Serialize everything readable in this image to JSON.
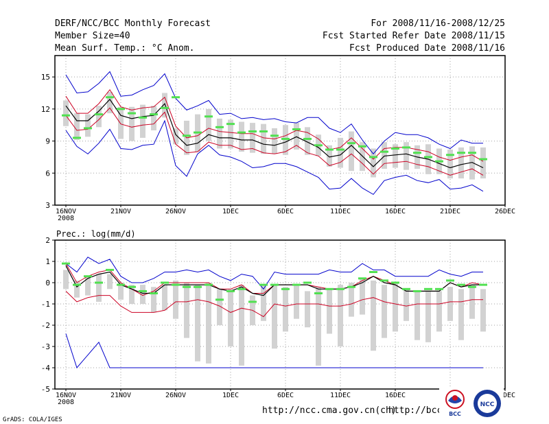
{
  "header": {
    "title": "DERF/NCC/BCC Monthly Forecast",
    "member_size": "Member Size=40",
    "variable": "Mean Surf. Temp.: °C Anom.",
    "period": "For 2008/11/16-2008/12/25",
    "started": "Fcst Started Refer Date 2008/11/15",
    "produced": "Fcst Produced Date 2008/11/16"
  },
  "footer": {
    "grads": "GrADS: COLA/IGES",
    "url1": "http://ncc.cma.gov.cn(ch)",
    "url2": "http://bcc.c"
  },
  "logos": {
    "bcc": "BCC",
    "ncc": "NCC"
  },
  "colors": {
    "grid": "#a0a0a0",
    "box": "#d2d2d2",
    "green": "#50e050",
    "blue": "#0000cc",
    "red": "#cc0022",
    "black": "#000000"
  },
  "chart_data": [
    {
      "type": "line",
      "title": "Mean Surf. Temp.: °C Anom.",
      "xlabel": "",
      "ylabel": "",
      "x_ticks": [
        "16NOV",
        "21NOV",
        "26NOV",
        "1DEC",
        "6DEC",
        "11DEC",
        "16DEC",
        "21DEC",
        "26DEC"
      ],
      "x_year": "2008",
      "ylim": [
        3,
        17
      ],
      "y_ticks": [
        3,
        6,
        9,
        12,
        15
      ],
      "series": [
        {
          "name": "max",
          "color": "blue",
          "values": [
            15.2,
            13.5,
            13.6,
            14.4,
            15.5,
            13.2,
            13.3,
            13.8,
            14.2,
            15.3,
            13.0,
            11.9,
            12.3,
            12.8,
            11.5,
            11.6,
            11.1,
            11.2,
            11.0,
            11.1,
            10.8,
            10.7,
            11.2,
            11.2,
            10.2,
            9.8,
            10.6,
            9.1,
            7.8,
            9.0,
            9.8,
            9.6,
            9.6,
            9.3,
            8.7,
            8.3,
            9.1,
            8.8,
            8.8
          ]
        },
        {
          "name": "upper",
          "color": "red",
          "values": [
            13.2,
            11.6,
            11.6,
            12.5,
            13.8,
            12.2,
            11.9,
            12.1,
            12.2,
            13.1,
            10.4,
            9.3,
            9.5,
            10.2,
            9.9,
            9.8,
            9.7,
            9.7,
            9.3,
            9.2,
            9.5,
            10.0,
            9.8,
            9.2,
            8.2,
            8.4,
            9.3,
            8.3,
            7.3,
            8.3,
            8.4,
            8.4,
            8.2,
            8.0,
            7.5,
            7.2,
            7.5,
            7.7,
            7.1
          ]
        },
        {
          "name": "mean",
          "color": "black",
          "values": [
            12.3,
            10.9,
            10.9,
            11.8,
            12.9,
            11.4,
            11.1,
            11.3,
            11.4,
            12.5,
            9.6,
            8.6,
            8.8,
            9.6,
            9.3,
            9.3,
            9.1,
            9.1,
            8.7,
            8.6,
            8.9,
            9.4,
            8.9,
            8.4,
            7.5,
            7.7,
            8.6,
            7.6,
            6.6,
            7.6,
            7.7,
            7.8,
            7.5,
            7.3,
            6.9,
            6.5,
            6.8,
            7.0,
            6.5
          ]
        },
        {
          "name": "lower",
          "color": "red",
          "values": [
            11.4,
            10.0,
            10.1,
            11.0,
            12.1,
            10.6,
            10.3,
            10.5,
            10.6,
            11.7,
            8.7,
            7.9,
            8.0,
            8.9,
            8.6,
            8.6,
            8.2,
            8.3,
            7.9,
            7.8,
            8.0,
            8.6,
            7.9,
            7.6,
            6.7,
            7.0,
            7.8,
            6.9,
            5.9,
            6.9,
            7.0,
            7.1,
            6.8,
            6.6,
            6.2,
            5.8,
            6.1,
            6.4,
            5.8
          ]
        },
        {
          "name": "min",
          "color": "blue",
          "values": [
            10.0,
            8.5,
            7.8,
            8.8,
            10.1,
            8.3,
            8.2,
            8.6,
            8.7,
            10.9,
            6.7,
            5.7,
            7.8,
            8.6,
            7.7,
            7.5,
            7.1,
            6.5,
            6.6,
            6.9,
            6.9,
            6.6,
            6.1,
            5.6,
            4.5,
            4.6,
            5.5,
            4.6,
            4.0,
            5.3,
            5.6,
            5.8,
            5.3,
            5.1,
            5.4,
            4.5,
            4.6,
            4.9,
            4.3
          ]
        },
        {
          "name": "control",
          "color": "green",
          "values": [
            11.4,
            9.3,
            10.2,
            11.5,
            13.1,
            12.0,
            11.6,
            11.2,
            11.5,
            12.1,
            13.1,
            9.5,
            9.8,
            11.3,
            10.3,
            10.6,
            9.8,
            9.9,
            9.9,
            9.5,
            9.2,
            10.1,
            9.2,
            8.6,
            8.2,
            8.2,
            8.8,
            8.5,
            7.5,
            8.0,
            8.3,
            8.4,
            7.9,
            7.5,
            7.1,
            7.7,
            7.9,
            7.9,
            7.3
          ]
        }
      ],
      "boxes": [
        [
          12.8,
          10.4
        ],
        [
          11.6,
          9.1
        ],
        [
          11.5,
          9.4
        ],
        [
          12.3,
          10.3
        ],
        [
          13.6,
          11.6
        ],
        [
          12.2,
          9.2
        ],
        [
          12.2,
          9.0
        ],
        [
          12.4,
          9.3
        ],
        [
          12.3,
          10.0
        ],
        [
          13.5,
          11.2
        ],
        [
          10.2,
          8.7
        ],
        [
          10.9,
          7.7
        ],
        [
          11.5,
          8.0
        ],
        [
          12.0,
          9.0
        ],
        [
          11.1,
          8.3
        ],
        [
          11.0,
          8.3
        ],
        [
          10.8,
          8.0
        ],
        [
          10.7,
          7.9
        ],
        [
          10.6,
          7.8
        ],
        [
          10.2,
          7.8
        ],
        [
          10.5,
          7.7
        ],
        [
          10.7,
          8.2
        ],
        [
          10.3,
          7.7
        ],
        [
          9.6,
          7.6
        ],
        [
          8.6,
          6.6
        ],
        [
          9.3,
          6.5
        ],
        [
          9.9,
          6.2
        ],
        [
          8.9,
          6.2
        ],
        [
          8.3,
          5.6
        ],
        [
          8.9,
          6.4
        ],
        [
          8.7,
          6.5
        ],
        [
          8.9,
          6.3
        ],
        [
          8.6,
          6.4
        ],
        [
          8.7,
          5.9
        ],
        [
          8.3,
          5.9
        ],
        [
          8.2,
          5.5
        ],
        [
          8.4,
          5.5
        ],
        [
          8.5,
          5.4
        ],
        [
          8.4,
          5.5
        ]
      ]
    },
    {
      "type": "line",
      "title": "Prec.: log(mm/d)",
      "xlabel": "",
      "ylabel": "",
      "x_ticks": [
        "16NOV",
        "21NOV",
        "26NOV",
        "1DEC",
        "6DEC",
        "11DEC",
        "16DEC",
        "21DEC",
        "26DEC"
      ],
      "x_year": "2008",
      "ylim": [
        -5,
        2
      ],
      "y_ticks": [
        -5,
        -4,
        -3,
        -2,
        -1,
        0,
        1,
        2
      ],
      "series": [
        {
          "name": "max",
          "color": "blue",
          "values": [
            0.9,
            0.5,
            1.2,
            0.9,
            1.1,
            0.3,
            0.0,
            0.0,
            0.2,
            0.5,
            0.5,
            0.6,
            0.5,
            0.6,
            0.3,
            0.1,
            0.4,
            0.3,
            -0.3,
            0.5,
            0.4,
            0.4,
            0.4,
            0.4,
            0.6,
            0.5,
            0.5,
            0.9,
            0.6,
            0.6,
            0.3,
            0.3,
            0.3,
            0.3,
            0.6,
            0.4,
            0.3,
            0.5,
            0.5
          ]
        },
        {
          "name": "upper",
          "color": "red",
          "values": [
            0.9,
            0.0,
            0.3,
            0.5,
            0.6,
            0.0,
            -0.3,
            -0.6,
            -0.4,
            0.0,
            0.0,
            0.0,
            0.0,
            0.0,
            -0.3,
            -0.3,
            -0.1,
            -0.5,
            -0.5,
            -0.1,
            -0.1,
            -0.1,
            -0.1,
            -0.2,
            -0.3,
            -0.3,
            -0.2,
            0.1,
            0.3,
            0.1,
            -0.1,
            -0.4,
            -0.4,
            -0.4,
            -0.4,
            0.0,
            -0.2,
            0.0,
            -0.1
          ]
        },
        {
          "name": "mean",
          "color": "black",
          "values": [
            0.8,
            -0.2,
            0.2,
            0.4,
            0.5,
            -0.1,
            -0.3,
            -0.5,
            -0.5,
            -0.1,
            -0.1,
            -0.1,
            -0.1,
            -0.1,
            -0.3,
            -0.4,
            -0.2,
            -0.5,
            -0.6,
            -0.1,
            -0.1,
            -0.1,
            -0.1,
            -0.3,
            -0.3,
            -0.3,
            -0.2,
            0.0,
            0.3,
            0.0,
            -0.1,
            -0.4,
            -0.4,
            -0.4,
            -0.4,
            0.0,
            -0.2,
            -0.1,
            -0.1
          ]
        },
        {
          "name": "lower",
          "color": "red",
          "values": [
            -0.4,
            -0.9,
            -0.7,
            -0.6,
            -0.6,
            -1.1,
            -1.4,
            -1.4,
            -1.4,
            -1.3,
            -0.9,
            -0.9,
            -0.8,
            -0.9,
            -1.1,
            -1.4,
            -1.2,
            -1.3,
            -1.6,
            -1.0,
            -1.1,
            -1.0,
            -1.0,
            -1.0,
            -1.1,
            -1.1,
            -1.0,
            -0.8,
            -0.7,
            -0.9,
            -1.0,
            -1.1,
            -1.0,
            -1.0,
            -1.0,
            -0.9,
            -0.9,
            -0.8,
            -0.8
          ]
        },
        {
          "name": "min",
          "color": "blue",
          "values": [
            -2.4,
            -4.0,
            -3.4,
            -2.8,
            -4.0,
            -4.0,
            -4.0,
            -4.0,
            -4.0,
            -4.0,
            -4.0,
            -4.0,
            -4.0,
            -4.0,
            -4.0,
            -4.0,
            -4.0,
            -4.0,
            -4.0,
            -4.0,
            -4.0,
            -4.0,
            -4.0,
            -4.0,
            -4.0,
            -4.0,
            -4.0,
            -4.0,
            -4.0,
            -4.0,
            -4.0,
            -4.0,
            -4.0,
            -4.0,
            -4.0,
            -4.0,
            -4.0,
            -4.0,
            -4.0
          ]
        },
        {
          "name": "control",
          "color": "green",
          "values": [
            0.9,
            -0.1,
            0.3,
            0.0,
            0.6,
            -0.1,
            -0.2,
            -0.4,
            -0.5,
            0.0,
            -0.1,
            -0.2,
            -0.2,
            -0.1,
            -0.8,
            -0.4,
            -0.3,
            -0.9,
            -0.1,
            -0.1,
            -0.3,
            -0.1,
            0.0,
            -0.5,
            -0.3,
            -0.3,
            -0.2,
            0.2,
            0.5,
            0.1,
            0.0,
            -0.3,
            -0.4,
            -0.3,
            -0.3,
            0.1,
            -0.1,
            -0.2,
            -0.1
          ]
        }
      ],
      "boxes": [
        [
          0.6,
          -0.3
        ],
        [
          0.1,
          -0.7
        ],
        [
          0.3,
          -0.6
        ],
        [
          0.4,
          -0.9
        ],
        [
          0.4,
          -0.3
        ],
        [
          0.0,
          -0.8
        ],
        [
          -0.1,
          -1.0
        ],
        [
          -0.1,
          -1.0
        ],
        [
          -0.2,
          -1.4
        ],
        [
          -0.1,
          -1.3
        ],
        [
          0.1,
          -1.7
        ],
        [
          0.0,
          -2.6
        ],
        [
          -0.1,
          -3.7
        ],
        [
          0.0,
          -3.8
        ],
        [
          -0.3,
          -2.0
        ],
        [
          -0.3,
          -3.0
        ],
        [
          -0.1,
          -3.9
        ],
        [
          -0.6,
          -2.0
        ],
        [
          -0.1,
          -1.8
        ],
        [
          -0.1,
          -3.1
        ],
        [
          -0.2,
          -2.3
        ],
        [
          -0.1,
          -1.7
        ],
        [
          -0.4,
          -2.1
        ],
        [
          -0.2,
          -3.9
        ],
        [
          -0.3,
          -2.4
        ],
        [
          -0.1,
          -3.0
        ],
        [
          0.0,
          -1.6
        ],
        [
          0.2,
          -1.5
        ],
        [
          0.1,
          -3.2
        ],
        [
          -0.1,
          -2.6
        ],
        [
          0.0,
          -2.3
        ],
        [
          -0.3,
          -1.8
        ],
        [
          -0.4,
          -2.7
        ],
        [
          -0.4,
          -2.8
        ],
        [
          -0.4,
          -2.3
        ],
        [
          -0.2,
          -1.8
        ],
        [
          -0.3,
          -2.7
        ],
        [
          -0.1,
          -1.7
        ],
        [
          -0.3,
          -2.3
        ]
      ]
    }
  ]
}
